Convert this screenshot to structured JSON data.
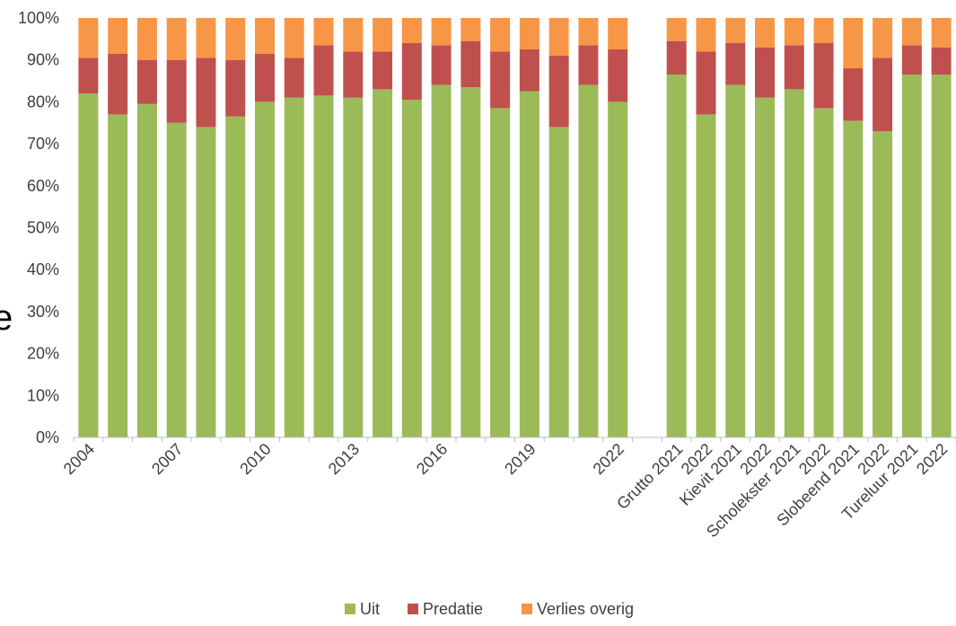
{
  "chart_data": {
    "type": "bar",
    "stacked": true,
    "percent_stacked": true,
    "categories": [
      "2004",
      "",
      "",
      "2007",
      "",
      "",
      "2010",
      "",
      "",
      "2013",
      "",
      "",
      "2016",
      "",
      "",
      "2019",
      "",
      "",
      "2022",
      "",
      "Grutto 2021",
      "2022",
      "Kievit 2021",
      "2022",
      "Scholekster 2021",
      "2022",
      "Slobeend 2021",
      "2022",
      "Tureluur 2021",
      "2022"
    ],
    "series": [
      {
        "name": "Uit",
        "color": "#9BBB59",
        "values": [
          82,
          77,
          79.5,
          75,
          74,
          76.5,
          80,
          81,
          81.5,
          81,
          83,
          80.5,
          84,
          83.5,
          78.5,
          82.5,
          74,
          84,
          80,
          null,
          86.5,
          77,
          84,
          81,
          83,
          78.5,
          75.5,
          73,
          86.5,
          86.5
        ]
      },
      {
        "name": "Predatie",
        "color": "#C0504D",
        "values": [
          8.5,
          14.5,
          10.5,
          15,
          16.5,
          13.5,
          11.5,
          9.5,
          12,
          11,
          9,
          13.5,
          9.5,
          11,
          13.5,
          10,
          17,
          9.5,
          12.5,
          null,
          8,
          15,
          10,
          12,
          10.5,
          15.5,
          12.5,
          17.5,
          7,
          6.5
        ]
      },
      {
        "name": "Verlies overig",
        "color": "#F79646",
        "values": [
          9.5,
          8.5,
          10,
          10,
          9.5,
          10,
          8.5,
          9.5,
          6.5,
          8,
          8,
          6,
          6.5,
          5.5,
          8,
          7.5,
          9,
          6.5,
          7.5,
          null,
          5.5,
          8,
          6,
          7,
          6.5,
          6,
          12,
          9.5,
          6.5,
          7
        ]
      }
    ],
    "yticks": [
      "0%",
      "10%",
      "20%",
      "30%",
      "40%",
      "50%",
      "60%",
      "70%",
      "80%",
      "90%",
      "100%"
    ],
    "ylim": [
      0,
      100
    ],
    "title": "",
    "xlabel": "",
    "ylabel": "",
    "grid": false,
    "legend": {
      "position": "bottom",
      "entries": [
        "Uit",
        "Predatie",
        "Verlies overig"
      ]
    }
  },
  "edge_glyph": "e"
}
